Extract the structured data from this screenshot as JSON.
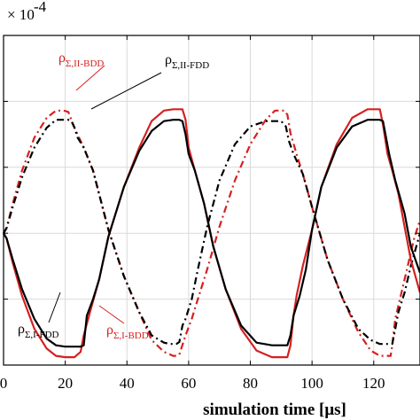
{
  "chart_data": {
    "type": "line",
    "title": "",
    "xlabel": "simulation time [μs]",
    "ylabel": "",
    "y_exponent_label": "× 10",
    "y_exponent_power": "-4",
    "xlim": [
      0,
      135
    ],
    "ylim": [
      -2.0,
      3.0
    ],
    "x_ticks": [
      0,
      20,
      40,
      60,
      80,
      100,
      120
    ],
    "x_tick_labels": [
      "0",
      "20",
      "40",
      "60",
      "80",
      "100",
      "120"
    ],
    "y_ticks": [
      -2,
      -1,
      0,
      1,
      2,
      3
    ],
    "grid": true,
    "series": [
      {
        "name": "ρΣ,II-BDD",
        "color": "#d62020",
        "dash": "8,4,2,4",
        "x": [
          0,
          1,
          3,
          6,
          10,
          14,
          17,
          18,
          19.5,
          21,
          23,
          26,
          29,
          34,
          39,
          44,
          48,
          52,
          54,
          55,
          56,
          57,
          59,
          61,
          63,
          66,
          70,
          75,
          80,
          85,
          88,
          90,
          91,
          92,
          93,
          95,
          97,
          100,
          105,
          110,
          115,
          119,
          122,
          124,
          125.5,
          126,
          127,
          129,
          131,
          133,
          135
        ],
        "y": [
          0,
          0.08,
          0.45,
          0.95,
          1.45,
          1.75,
          1.86,
          1.86,
          1.86,
          1.84,
          1.6,
          1.3,
          0.95,
          0.05,
          -0.65,
          -1.2,
          -1.62,
          -1.8,
          -1.84,
          -1.86,
          -1.86,
          -1.84,
          -1.55,
          -1.3,
          -1.0,
          -0.55,
          0.1,
          0.8,
          1.35,
          1.72,
          1.86,
          1.86,
          1.86,
          1.8,
          1.52,
          1.2,
          0.9,
          0.4,
          -0.4,
          -1.0,
          -1.5,
          -1.78,
          -1.86,
          -1.86,
          -1.86,
          -1.7,
          -1.3,
          -0.9,
          -0.5,
          -0.1,
          0.2
        ]
      },
      {
        "name": "ρΣ,II-FDD",
        "color": "#000000",
        "dash": "8,4,2,4",
        "x": [
          0,
          1,
          3,
          6,
          10,
          14,
          17,
          19,
          21,
          22,
          23,
          24,
          26,
          29,
          34,
          39,
          44,
          48,
          52,
          54,
          56,
          57,
          58,
          59,
          61,
          63,
          66,
          70,
          75,
          80,
          85,
          88,
          90,
          91.5,
          92.5,
          94,
          97,
          100,
          105,
          110,
          115,
          119,
          122,
          124,
          126,
          127,
          128,
          130,
          132,
          135
        ],
        "y": [
          0,
          0.08,
          0.4,
          0.85,
          1.3,
          1.6,
          1.72,
          1.72,
          1.72,
          1.7,
          1.6,
          1.45,
          1.3,
          0.95,
          0.05,
          -0.65,
          -1.2,
          -1.55,
          -1.66,
          -1.68,
          -1.68,
          -1.65,
          -1.4,
          -1.3,
          -1.0,
          -0.55,
          0.1,
          0.8,
          1.35,
          1.62,
          1.7,
          1.7,
          1.7,
          1.62,
          1.4,
          1.2,
          0.9,
          0.4,
          -0.4,
          -1.0,
          -1.45,
          -1.62,
          -1.68,
          -1.68,
          -1.68,
          -1.45,
          -1.2,
          -0.9,
          -0.5,
          0.0
        ]
      },
      {
        "name": "ρΣ,I-BDD",
        "color": "#d62020",
        "dash": "",
        "x": [
          0,
          1,
          3,
          6,
          10,
          14,
          17,
          20,
          23,
          25,
          26,
          28,
          31,
          34,
          39,
          44,
          48,
          52,
          55,
          57,
          58,
          59,
          60,
          62,
          65,
          68,
          72,
          77,
          82,
          87,
          90,
          92,
          93,
          94,
          95,
          97,
          100,
          103,
          108,
          113,
          118,
          120,
          122,
          123,
          124.5,
          126,
          128,
          130,
          132,
          135
        ],
        "y": [
          0,
          -0.08,
          -0.45,
          -0.95,
          -1.45,
          -1.75,
          -1.86,
          -1.88,
          -1.88,
          -1.8,
          -1.55,
          -1.2,
          -0.7,
          -0.05,
          0.7,
          1.3,
          1.7,
          1.86,
          1.88,
          1.88,
          1.88,
          1.72,
          1.3,
          0.95,
          0.45,
          -0.2,
          -0.85,
          -1.45,
          -1.78,
          -1.88,
          -1.88,
          -1.88,
          -1.7,
          -1.25,
          -0.95,
          -0.5,
          0.05,
          0.7,
          1.35,
          1.75,
          1.88,
          1.88,
          1.88,
          1.65,
          1.2,
          0.95,
          0.6,
          0.1,
          -0.4,
          -0.9
        ]
      },
      {
        "name": "ρΣ,I-FDD",
        "color": "#000000",
        "dash": "",
        "x": [
          0,
          1,
          3,
          6,
          10,
          14,
          17,
          20,
          23,
          25,
          26,
          27,
          29,
          31,
          34,
          39,
          44,
          48,
          52,
          55,
          57,
          58,
          59,
          60,
          62,
          65,
          68,
          72,
          77,
          82,
          87,
          90,
          92,
          93,
          94,
          96,
          98,
          100,
          103,
          108,
          113,
          118,
          120,
          122,
          123,
          124,
          125,
          127,
          130,
          132,
          135
        ],
        "y": [
          0,
          -0.08,
          -0.4,
          -0.85,
          -1.3,
          -1.6,
          -1.7,
          -1.72,
          -1.72,
          -1.72,
          -1.7,
          -1.25,
          -1.0,
          -0.7,
          -0.05,
          0.7,
          1.25,
          1.55,
          1.7,
          1.72,
          1.72,
          1.7,
          1.5,
          1.2,
          0.95,
          0.45,
          -0.2,
          -0.85,
          -1.4,
          -1.66,
          -1.7,
          -1.7,
          -1.7,
          -1.55,
          -1.25,
          -0.95,
          -0.55,
          0.05,
          0.7,
          1.3,
          1.62,
          1.72,
          1.72,
          1.72,
          1.7,
          1.45,
          1.2,
          0.8,
          0.3,
          -0.2,
          -0.6
        ]
      }
    ],
    "annotations": [
      {
        "main": "ρ",
        "sub": "Σ,II-BDD",
        "color": "#d62020"
      },
      {
        "main": "ρ",
        "sub": "Σ,II-FDD",
        "color": "#000000"
      },
      {
        "main": "ρ",
        "sub": "Σ,I-FDD",
        "color": "#000000"
      },
      {
        "main": "ρ",
        "sub": "Σ,I-BDD",
        "color": "#d62020"
      }
    ]
  }
}
